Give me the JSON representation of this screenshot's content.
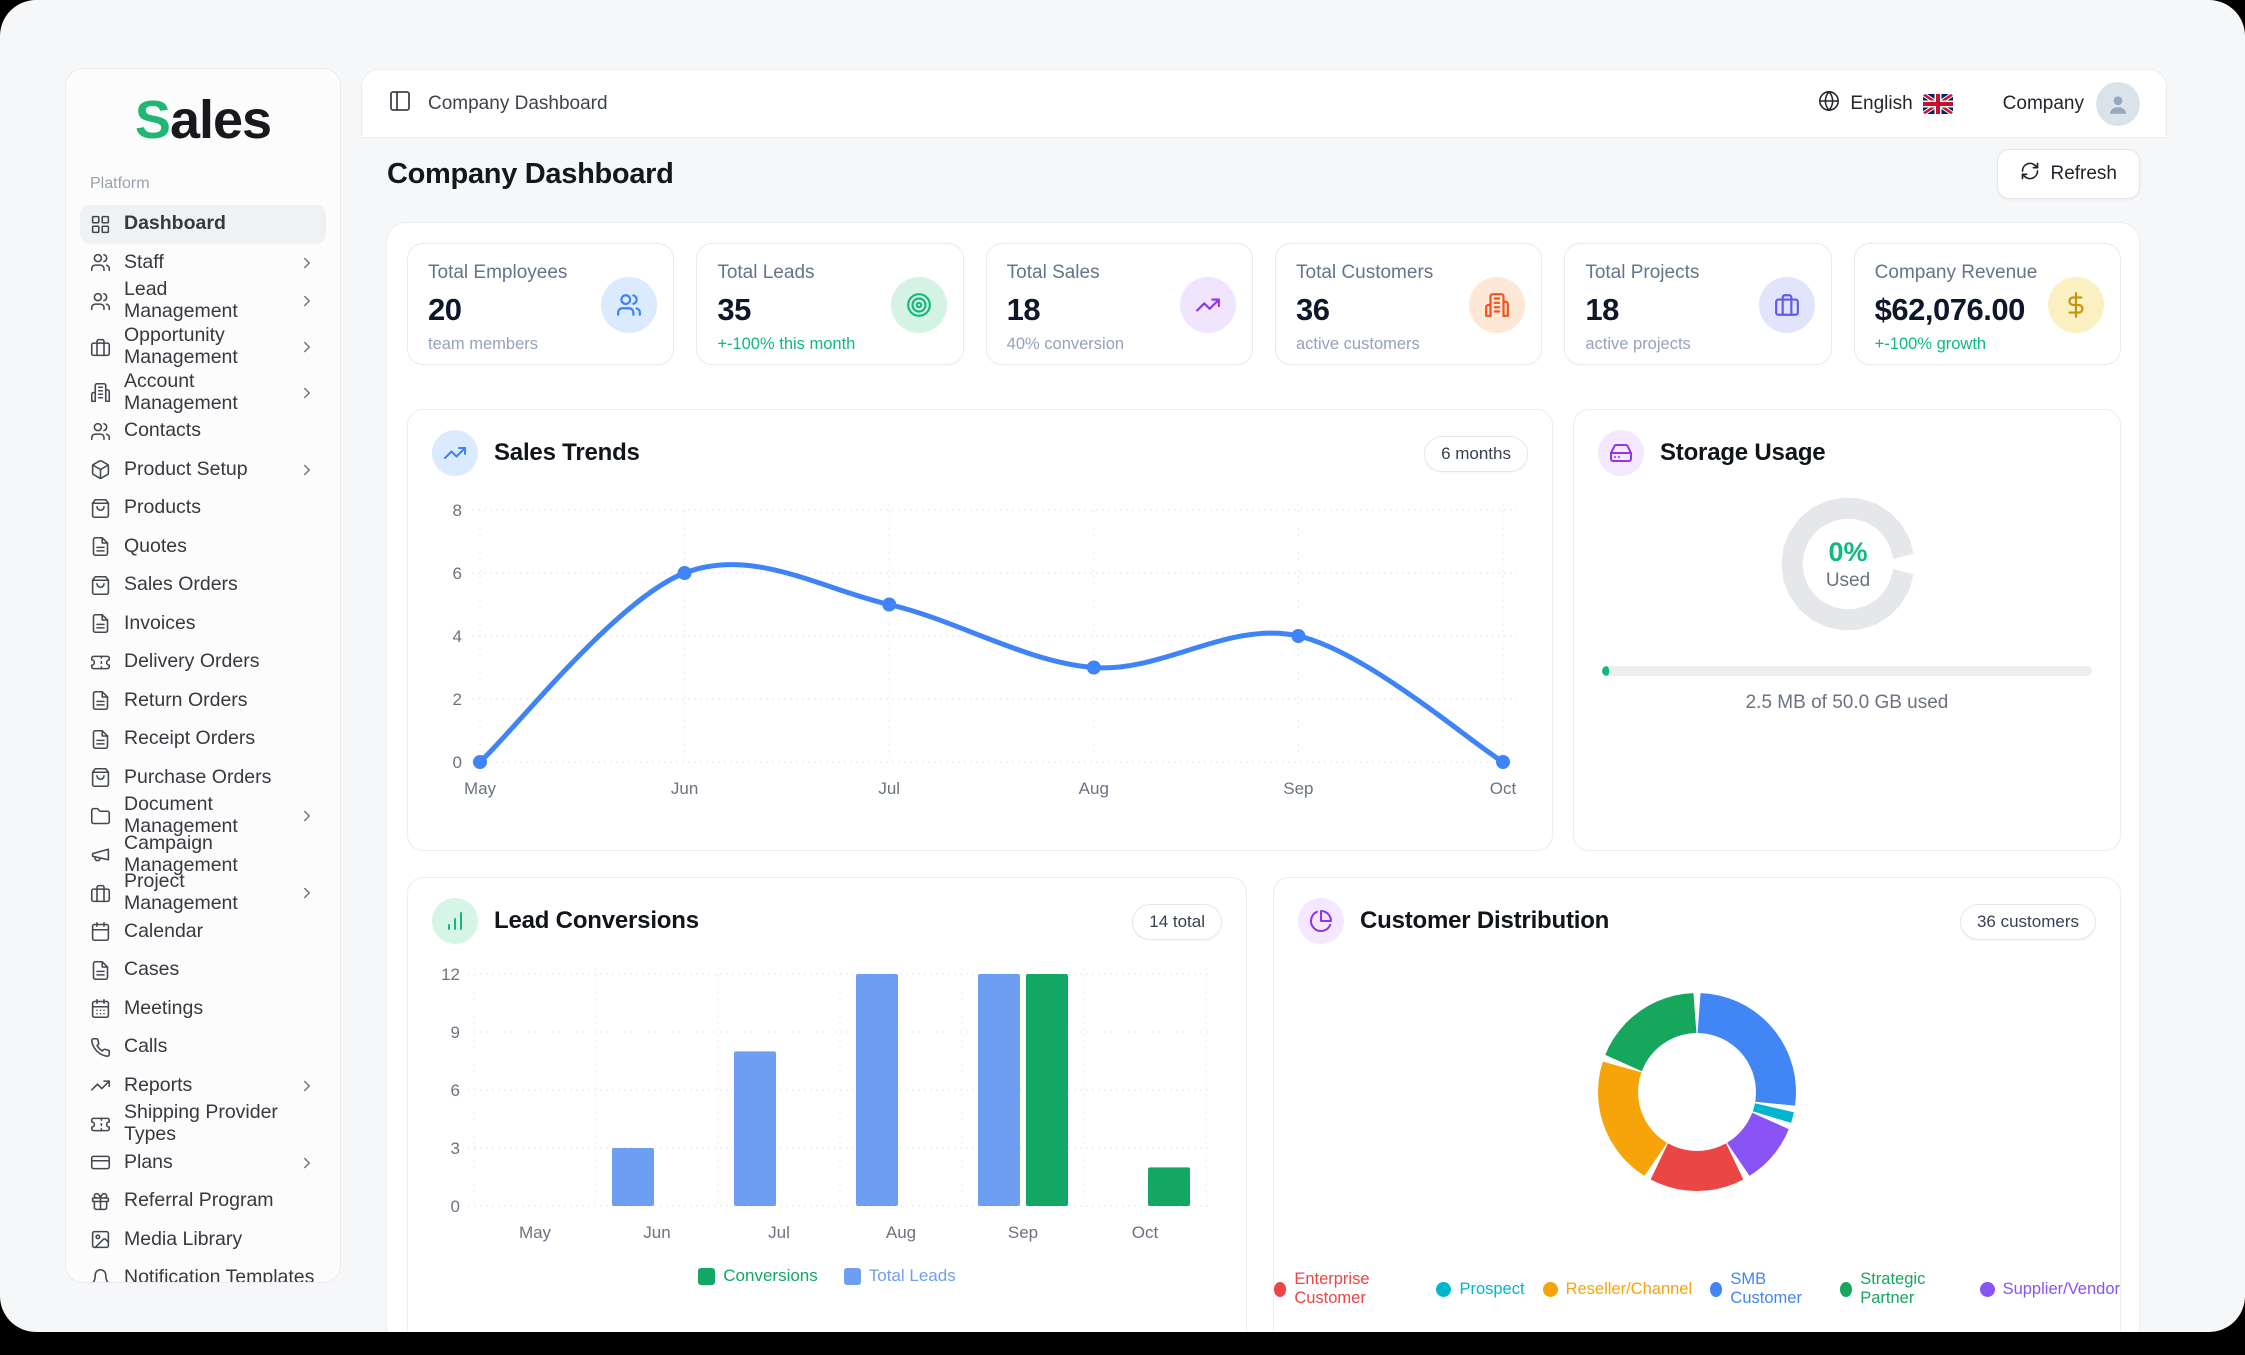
{
  "app": {
    "logo_accent": "S",
    "logo_rest": "ales"
  },
  "sidebar": {
    "section_label": "Platform",
    "items": [
      {
        "label": "Dashboard",
        "icon": "grid",
        "active": true
      },
      {
        "label": "Staff",
        "icon": "users",
        "chevron": true
      },
      {
        "label": "Lead Management",
        "icon": "users",
        "chevron": true
      },
      {
        "label": "Opportunity Management",
        "icon": "briefcase",
        "chevron": true,
        "wrap": true
      },
      {
        "label": "Account Management",
        "icon": "building",
        "chevron": true
      },
      {
        "label": "Contacts",
        "icon": "users"
      },
      {
        "label": "Product Setup",
        "icon": "package",
        "chevron": true
      },
      {
        "label": "Products",
        "icon": "bag"
      },
      {
        "label": "Quotes",
        "icon": "file"
      },
      {
        "label": "Sales Orders",
        "icon": "bag"
      },
      {
        "label": "Invoices",
        "icon": "file"
      },
      {
        "label": "Delivery Orders",
        "icon": "ticket"
      },
      {
        "label": "Return Orders",
        "icon": "file"
      },
      {
        "label": "Receipt Orders",
        "icon": "file"
      },
      {
        "label": "Purchase Orders",
        "icon": "bag"
      },
      {
        "label": "Document Management",
        "icon": "folder",
        "chevron": true
      },
      {
        "label": "Campaign Management",
        "icon": "megaphone"
      },
      {
        "label": "Project Management",
        "icon": "briefcase",
        "chevron": true
      },
      {
        "label": "Calendar",
        "icon": "calendar"
      },
      {
        "label": "Cases",
        "icon": "file"
      },
      {
        "label": "Meetings",
        "icon": "caldays"
      },
      {
        "label": "Calls",
        "icon": "phone"
      },
      {
        "label": "Reports",
        "icon": "trend",
        "chevron": true
      },
      {
        "label": "Shipping Provider Types",
        "icon": "ticket"
      },
      {
        "label": "Plans",
        "icon": "card",
        "chevron": true
      },
      {
        "label": "Referral Program",
        "icon": "gift"
      },
      {
        "label": "Media Library",
        "icon": "image"
      },
      {
        "label": "Notification Templates",
        "icon": "bell"
      }
    ]
  },
  "topbar": {
    "breadcrumb": "Company Dashboard",
    "language": "English",
    "account": "Company"
  },
  "page": {
    "title": "Company Dashboard",
    "refresh": "Refresh"
  },
  "stats": [
    {
      "title": "Total Employees",
      "value": "20",
      "subtitle": "team members",
      "positive": false,
      "icon": "users",
      "fg": "#3b82f6",
      "bg": "#dbeafe"
    },
    {
      "title": "Total Leads",
      "value": "35",
      "subtitle": "+-100% this month",
      "positive": true,
      "icon": "target",
      "fg": "#10b981",
      "bg": "#d4f3e4"
    },
    {
      "title": "Total Sales",
      "value": "18",
      "subtitle": "40% conversion",
      "positive": false,
      "icon": "trend",
      "fg": "#9333ea",
      "bg": "#f1e4fd"
    },
    {
      "title": "Total Customers",
      "value": "36",
      "subtitle": "active customers",
      "positive": false,
      "icon": "building",
      "fg": "#f4511e",
      "bg": "#fde8d7"
    },
    {
      "title": "Total Projects",
      "value": "18",
      "subtitle": "active projects",
      "positive": false,
      "icon": "briefcase",
      "fg": "#5c5cf0",
      "bg": "#e2e4fb"
    },
    {
      "title": "Company Revenue",
      "value": "$62,076.00",
      "subtitle": "+-100% growth",
      "positive": true,
      "icon": "dollar",
      "fg": "#c8920c",
      "bg": "#faf0c2"
    }
  ],
  "chart_data": [
    {
      "type": "line",
      "title": "Sales Trends",
      "badge": "6 months",
      "x": [
        "May",
        "Jun",
        "Jul",
        "Aug",
        "Sep",
        "Oct"
      ],
      "series": [
        {
          "name": "Sales",
          "values": [
            0,
            6,
            5,
            3,
            4,
            0
          ],
          "color": "#3f83f8"
        }
      ],
      "ylim": [
        0,
        8
      ],
      "yticks": [
        0,
        2,
        4,
        6,
        8
      ],
      "grid": true,
      "legend": "none",
      "header_icon": "trend",
      "header_fg": "#3b82f6",
      "header_bg": "#dbeafe"
    },
    {
      "type": "donut",
      "title": "Storage Usage",
      "percent_used": 0,
      "center_label": "0%",
      "center_sub": "Used",
      "caption": "2.5 MB of 50.0 GB used",
      "ring_color": "#e5e7eb",
      "accent": "#10b981",
      "header_icon": "drive",
      "header_fg": "#9333ea",
      "header_bg": "#f3e8ff"
    },
    {
      "type": "bar",
      "title": "Lead Conversions",
      "badge": "14 total",
      "categories": [
        "May",
        "Jun",
        "Jul",
        "Aug",
        "Sep",
        "Oct"
      ],
      "series": [
        {
          "name": "Conversions",
          "color": "#12a765",
          "values": [
            0,
            0,
            0,
            0,
            12,
            2
          ]
        },
        {
          "name": "Total Leads",
          "color": "#6d9ef1",
          "values": [
            0,
            3,
            8,
            12,
            12,
            0
          ]
        }
      ],
      "ylim": [
        0,
        12
      ],
      "yticks": [
        0,
        3,
        6,
        9,
        12
      ],
      "legend": "bottom",
      "header_icon": "barchart",
      "header_fg": "#10b981",
      "header_bg": "#d7f5e6"
    },
    {
      "type": "pie",
      "donut": true,
      "title": "Customer Distribution",
      "badge": "36 customers",
      "total": 36,
      "slices": [
        {
          "label": "Enterprise Customer",
          "value": 6,
          "color": "#ec4545"
        },
        {
          "label": "Prospect",
          "value": 1,
          "color": "#00b5cc"
        },
        {
          "label": "Reseller/Channel",
          "value": 8,
          "color": "#f7a40a"
        },
        {
          "label": "SMB Customer",
          "value": 10,
          "color": "#4285f4"
        },
        {
          "label": "Strategic Partner",
          "value": 7,
          "color": "#16a75c"
        },
        {
          "label": "Supplier/Vendor",
          "value": 4,
          "color": "#8a53f5"
        }
      ],
      "draw_order": [
        3,
        1,
        5,
        0,
        2,
        4
      ],
      "legend": "bottom",
      "header_icon": "pie",
      "header_fg": "#9333ea",
      "header_bg": "#f3e8ff"
    }
  ]
}
